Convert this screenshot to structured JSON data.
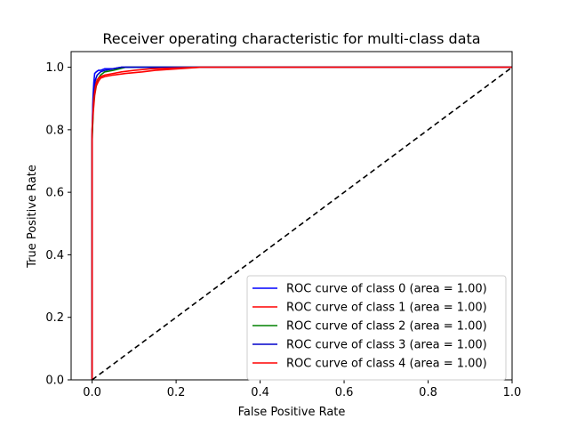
{
  "chart_data": {
    "type": "line",
    "title": "Receiver operating characteristic for multi-class data",
    "xlabel": "False Positive Rate",
    "ylabel": "True Positive Rate",
    "xlim": [
      -0.05,
      1.0
    ],
    "ylim": [
      0.0,
      1.05
    ],
    "xticks": [
      "0.0",
      "0.2",
      "0.4",
      "0.6",
      "0.8",
      "1.0"
    ],
    "yticks": [
      "0.0",
      "0.2",
      "0.4",
      "0.6",
      "0.8",
      "1.0"
    ],
    "grid": false,
    "legend_position": "lower-right",
    "series": [
      {
        "name": "ROC curve of class 0 (area = 1.00)",
        "color": "#0000ff",
        "x": [
          0.0,
          0.0,
          0.002,
          0.004,
          0.006,
          0.01,
          0.015,
          0.02,
          0.03,
          0.05,
          0.07,
          0.1,
          0.2,
          1.0
        ],
        "y": [
          0.0,
          0.78,
          0.9,
          0.95,
          0.98,
          0.985,
          0.99,
          0.99,
          0.995,
          0.995,
          1.0,
          1.0,
          1.0,
          1.0
        ]
      },
      {
        "name": "ROC curve of class 1 (area = 1.00)",
        "color": "#ff0000",
        "x": [
          0.0,
          0.0,
          0.003,
          0.006,
          0.01,
          0.015,
          0.02,
          0.03,
          0.05,
          0.08,
          0.12,
          0.15,
          0.26,
          1.0
        ],
        "y": [
          0.0,
          0.78,
          0.86,
          0.91,
          0.94,
          0.955,
          0.965,
          0.97,
          0.975,
          0.98,
          0.985,
          0.99,
          1.0,
          1.0
        ]
      },
      {
        "name": "ROC curve of class 2 (area = 1.00)",
        "color": "#008000",
        "x": [
          0.0,
          0.0,
          0.003,
          0.006,
          0.01,
          0.015,
          0.02,
          0.03,
          0.05,
          0.08,
          1.0
        ],
        "y": [
          0.0,
          0.76,
          0.88,
          0.92,
          0.95,
          0.965,
          0.975,
          0.985,
          0.99,
          1.0,
          1.0
        ]
      },
      {
        "name": "ROC curve of class 3 (area = 1.00)",
        "color": "#0000cc",
        "x": [
          0.0,
          0.0,
          0.002,
          0.004,
          0.008,
          0.012,
          0.02,
          0.03,
          0.05,
          0.07,
          0.1,
          0.25,
          1.0
        ],
        "y": [
          0.0,
          0.8,
          0.88,
          0.93,
          0.96,
          0.975,
          0.985,
          0.99,
          0.995,
          1.0,
          1.0,
          1.0,
          1.0
        ]
      },
      {
        "name": "ROC curve of class 4 (area = 1.00)",
        "color": "#ff0000",
        "x": [
          0.0,
          0.0,
          0.004,
          0.008,
          0.012,
          0.02,
          0.03,
          0.05,
          0.07,
          0.1,
          0.14,
          0.26,
          1.0
        ],
        "y": [
          0.0,
          0.8,
          0.9,
          0.94,
          0.96,
          0.97,
          0.975,
          0.98,
          0.985,
          0.99,
          0.995,
          1.0,
          1.0
        ]
      }
    ],
    "reference_line": {
      "color": "#000000",
      "style": "dashed",
      "x": [
        0.0,
        1.0
      ],
      "y": [
        0.0,
        1.0
      ]
    }
  }
}
